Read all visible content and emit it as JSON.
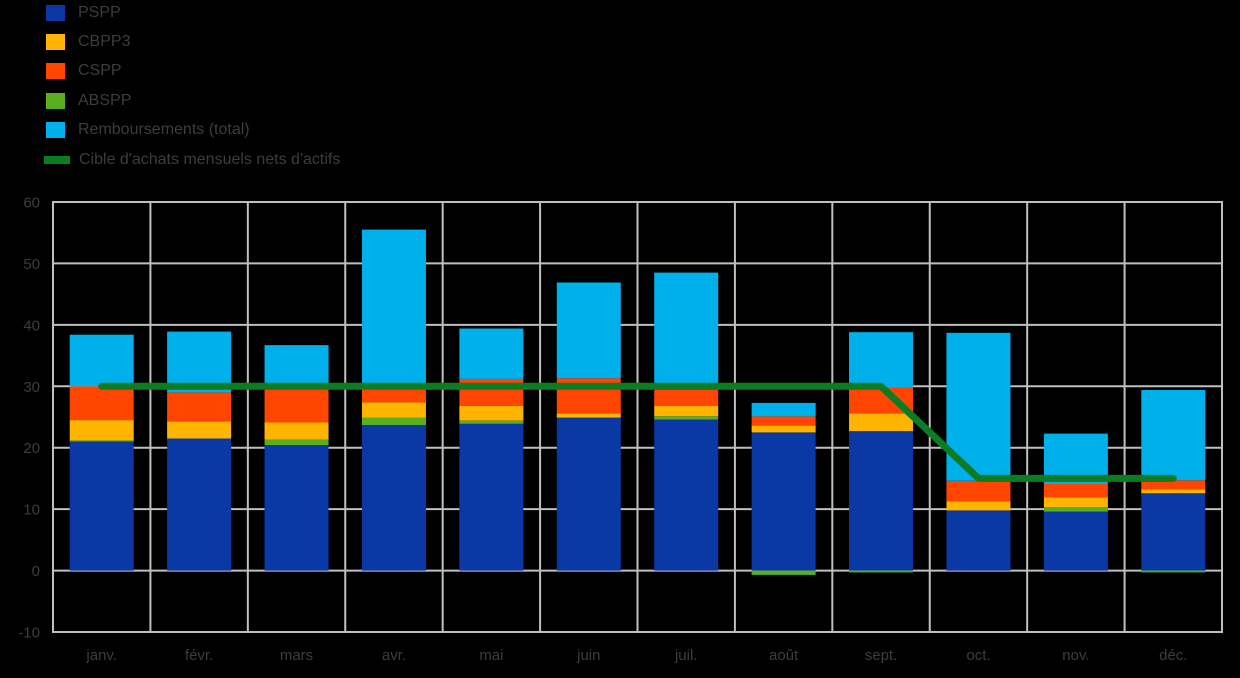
{
  "background_color": "#000000",
  "text_color": "#3d3d3d",
  "grid_color": "#bfbfbf",
  "legend": {
    "items": [
      {
        "label": "PSPP",
        "color": "#0a39a6",
        "swatch": "square"
      },
      {
        "label": "CBPP3",
        "color": "#ffb400",
        "swatch": "square"
      },
      {
        "label": "CSPP",
        "color": "#ff4500",
        "swatch": "square"
      },
      {
        "label": "ABSPP",
        "color": "#58b021",
        "swatch": "square"
      },
      {
        "label": "Remboursements (total)",
        "color": "#00b0ea",
        "swatch": "square"
      },
      {
        "label": "Cible d'achats mensuels nets d'actifs",
        "color": "#0c7c23",
        "swatch": "line"
      }
    ]
  },
  "chart_data": {
    "type": "bar",
    "subtype": "stacked-bars-with-step-line",
    "title": "",
    "xlabel": "",
    "ylabel": "",
    "categories": [
      "janv.",
      "févr.",
      "mars",
      "avr.",
      "mai",
      "juin",
      "juil.",
      "août",
      "sept.",
      "oct.",
      "nov.",
      "déc."
    ],
    "stack_order": [
      "PSPP",
      "ABSPP",
      "CBPP3",
      "CSPP",
      "Remboursements (total)"
    ],
    "series": [
      {
        "name": "PSPP",
        "color": "#0a39a6",
        "values": [
          21.0,
          21.5,
          20.4,
          23.7,
          23.9,
          24.9,
          24.6,
          22.5,
          22.7,
          9.8,
          9.6,
          12.6
        ]
      },
      {
        "name": "ABSPP",
        "color": "#58b021",
        "values": [
          0.2,
          0.0,
          0.9,
          1.2,
          0.5,
          0.0,
          0.5,
          -0.7,
          -0.3,
          0.0,
          0.7,
          -0.3
        ]
      },
      {
        "name": "CBPP3",
        "color": "#ffb400",
        "values": [
          3.3,
          2.8,
          2.8,
          2.5,
          2.4,
          0.7,
          1.7,
          1.1,
          2.9,
          1.5,
          1.6,
          0.6
        ]
      },
      {
        "name": "CSPP",
        "color": "#ff4500",
        "values": [
          5.5,
          4.7,
          6.2,
          2.1,
          4.4,
          5.7,
          2.6,
          1.5,
          4.2,
          3.3,
          2.2,
          1.5
        ]
      },
      {
        "name": "Remboursements (total)",
        "color": "#00b0ea",
        "values": [
          8.4,
          9.9,
          6.4,
          26.0,
          8.2,
          15.6,
          19.1,
          2.2,
          9.0,
          24.1,
          8.2,
          14.7
        ]
      }
    ],
    "line_series": {
      "name": "Cible d'achats mensuels nets d'actifs",
      "color": "#0c7c23",
      "values": [
        30,
        30,
        30,
        30,
        30,
        30,
        30,
        30,
        30,
        15,
        15,
        15
      ]
    },
    "ylim": [
      -10,
      60
    ],
    "yticks": [
      60,
      50,
      40,
      30,
      20,
      10,
      0,
      -10
    ],
    "grid": true,
    "legend_position": "top-left"
  }
}
